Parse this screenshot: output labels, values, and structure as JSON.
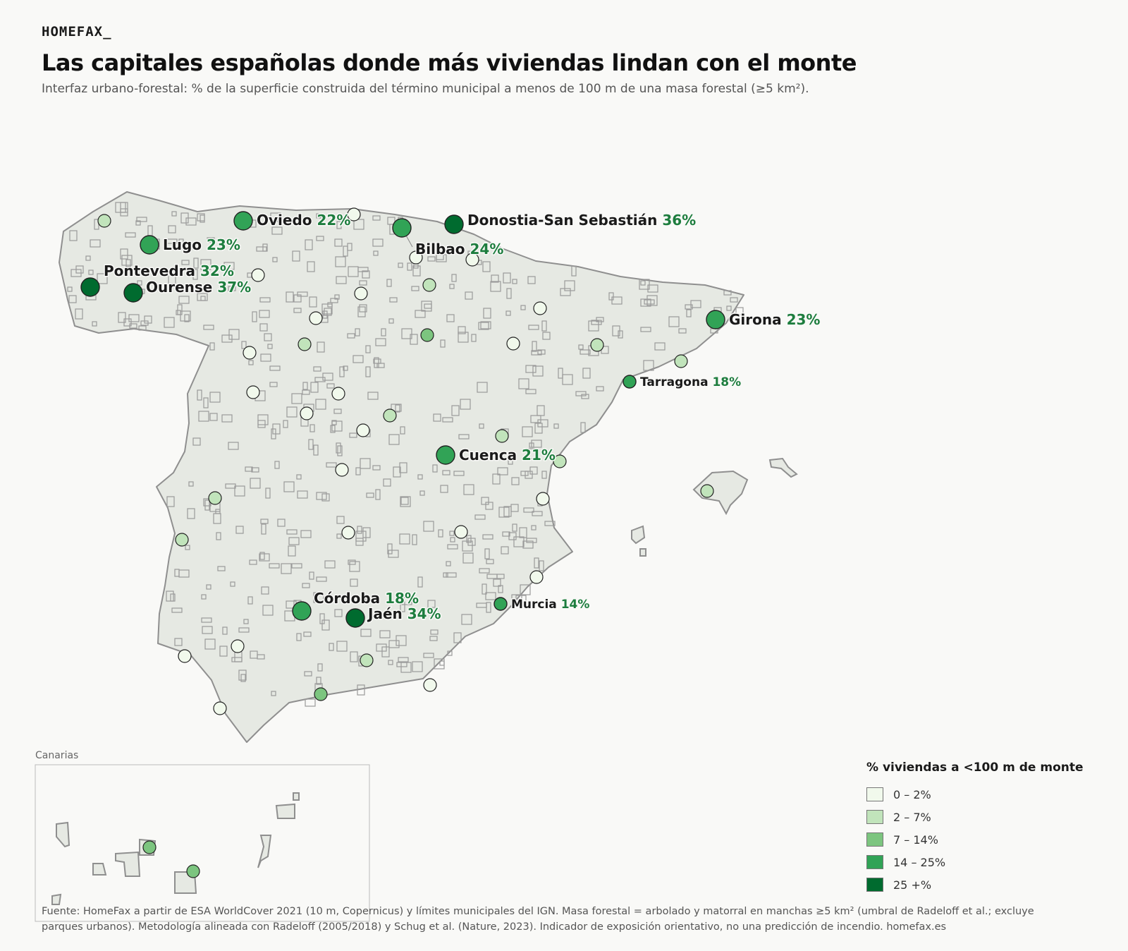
{
  "brand": "HOMEFAX_",
  "title": "Las capitales españolas donde más viviendas lindan con el monte",
  "subtitle": "Interfaz urbano-forestal: % de la superficie construida del término municipal a menos de 100 m de una masa forestal (≥5 km²).",
  "inset_label": "Canarias",
  "legend": {
    "title": "% viviendas a <100 m de monte",
    "items": [
      {
        "label": "0 – 2%",
        "color": "#f1f9ec"
      },
      {
        "label": "2 – 7%",
        "color": "#c1e4bb"
      },
      {
        "label": "7 – 14%",
        "color": "#7cc57f"
      },
      {
        "label": "14 – 25%",
        "color": "#31a356"
      },
      {
        "label": "25 +%",
        "color": "#006b2f"
      }
    ]
  },
  "source": "Fuente: HomeFax a partir de ESA WorldCover 2021 (10 m, Copernicus) y límites municipales del IGN. Masa forestal = arbolado y matorral en manchas ≥5 km² (umbral de Radeloff et al.; excluye parques urbanos). Metodología alineada con Radeloff (2005/2018) y Schug et al. (Nature, 2023). Indicador de exposición orientativo, no una predicción de incendio. homefax.es",
  "colors": {
    "background": "#f9f9f7",
    "land": "#e6e9e3",
    "land_stroke": "#8f8f8f",
    "label_pct": "#1d7d3e"
  },
  "labeled_cities": [
    {
      "name": "Ourense",
      "pct_label": "37%",
      "value": 37
    },
    {
      "name": "Donostia-San Sebastián",
      "pct_label": "36%",
      "value": 36
    },
    {
      "name": "Jaén",
      "pct_label": "34%",
      "value": 34
    },
    {
      "name": "Pontevedra",
      "pct_label": "32%",
      "value": 32
    },
    {
      "name": "Bilbao",
      "pct_label": "24%",
      "value": 24
    },
    {
      "name": "Lugo",
      "pct_label": "23%",
      "value": 23
    },
    {
      "name": "Girona",
      "pct_label": "23%",
      "value": 23
    },
    {
      "name": "Oviedo",
      "pct_label": "22%",
      "value": 22
    },
    {
      "name": "Cuenca",
      "pct_label": "21%",
      "value": 21
    },
    {
      "name": "Córdoba",
      "pct_label": "18%",
      "value": 18
    },
    {
      "name": "Tarragona",
      "pct_label": "18%",
      "value": 18
    },
    {
      "name": "Murcia",
      "pct_label": "14%",
      "value": 14
    }
  ]
}
